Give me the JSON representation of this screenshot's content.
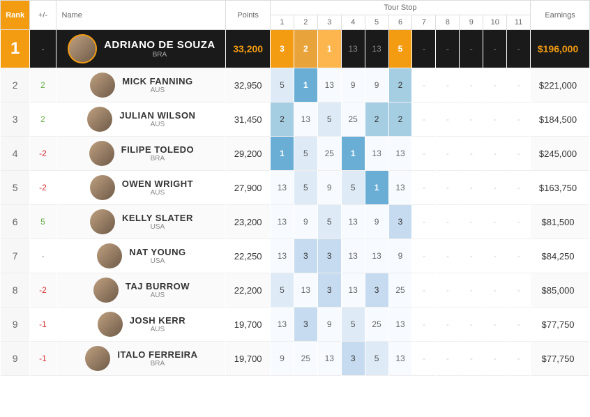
{
  "headers": {
    "rank": "Rank",
    "change": "+/-",
    "name": "Name",
    "points": "Points",
    "tour_stop": "Tour Stop",
    "stops": [
      "1",
      "2",
      "3",
      "4",
      "5",
      "6",
      "7",
      "8",
      "9",
      "10",
      "11"
    ],
    "earnings": "Earnings"
  },
  "style": {
    "accent": "#f39c12",
    "accent2": "#e8a33b",
    "accent3": "#fdb64e",
    "top_bg": "#1a1a1a",
    "blue1": "#6aaed6",
    "blue2": "#a6cee3",
    "blue3": "#c6dbef",
    "blue4": "#deebf7",
    "blue5": "#f7fbff",
    "up": "#6ab04c",
    "down": "#d63031"
  },
  "rows": [
    {
      "rank": "1",
      "change": "-",
      "change_dir": "none",
      "name": "ADRIANO DE SOUZA",
      "country": "BRA",
      "points": "33,200",
      "stops": [
        "3",
        "2",
        "1",
        "13",
        "13",
        "5",
        "-",
        "-",
        "-",
        "-",
        "-"
      ],
      "shades": [
        "s1",
        "s2",
        "s3",
        "s5",
        "s5",
        "s1",
        "empty",
        "empty",
        "empty",
        "empty",
        "empty"
      ],
      "earnings": "$196,000",
      "top": true
    },
    {
      "rank": "2",
      "change": "2",
      "change_dir": "up",
      "name": "MICK FANNING",
      "country": "AUS",
      "points": "32,950",
      "stops": [
        "5",
        "1",
        "13",
        "9",
        "9",
        "2",
        "-",
        "-",
        "-",
        "-",
        "-"
      ],
      "shades": [
        "s4",
        "s1",
        "s5",
        "s5",
        "s5",
        "s2",
        "empty",
        "empty",
        "empty",
        "empty",
        "empty"
      ],
      "earnings": "$221,000"
    },
    {
      "rank": "3",
      "change": "2",
      "change_dir": "up",
      "name": "JULIAN WILSON",
      "country": "AUS",
      "points": "31,450",
      "stops": [
        "2",
        "13",
        "5",
        "25",
        "2",
        "2",
        "-",
        "-",
        "-",
        "-",
        "-"
      ],
      "shades": [
        "s2",
        "s5",
        "s4",
        "s5",
        "s2",
        "s2",
        "empty",
        "empty",
        "empty",
        "empty",
        "empty"
      ],
      "earnings": "$184,500"
    },
    {
      "rank": "4",
      "change": "-2",
      "change_dir": "down",
      "name": "FILIPE TOLEDO",
      "country": "BRA",
      "points": "29,200",
      "stops": [
        "1",
        "5",
        "25",
        "1",
        "13",
        "13",
        "-",
        "-",
        "-",
        "-",
        "-"
      ],
      "shades": [
        "s1",
        "s4",
        "s5",
        "s1",
        "s5",
        "s5",
        "empty",
        "empty",
        "empty",
        "empty",
        "empty"
      ],
      "earnings": "$245,000"
    },
    {
      "rank": "5",
      "change": "-2",
      "change_dir": "down",
      "name": "OWEN WRIGHT",
      "country": "AUS",
      "points": "27,900",
      "stops": [
        "13",
        "5",
        "9",
        "5",
        "1",
        "13",
        "-",
        "-",
        "-",
        "-",
        "-"
      ],
      "shades": [
        "s5",
        "s4",
        "s5",
        "s4",
        "s1",
        "s5",
        "empty",
        "empty",
        "empty",
        "empty",
        "empty"
      ],
      "earnings": "$163,750"
    },
    {
      "rank": "6",
      "change": "5",
      "change_dir": "up",
      "name": "KELLY SLATER",
      "country": "USA",
      "points": "23,200",
      "stops": [
        "13",
        "9",
        "5",
        "13",
        "9",
        "3",
        "-",
        "-",
        "-",
        "-",
        "-"
      ],
      "shades": [
        "s5",
        "s5",
        "s4",
        "s5",
        "s5",
        "s3",
        "empty",
        "empty",
        "empty",
        "empty",
        "empty"
      ],
      "earnings": "$81,500"
    },
    {
      "rank": "7",
      "change": "-",
      "change_dir": "none",
      "name": "NAT YOUNG",
      "country": "USA",
      "points": "22,250",
      "stops": [
        "13",
        "3",
        "3",
        "13",
        "13",
        "9",
        "-",
        "-",
        "-",
        "-",
        "-"
      ],
      "shades": [
        "s5",
        "s3",
        "s3",
        "s5",
        "s5",
        "s5",
        "empty",
        "empty",
        "empty",
        "empty",
        "empty"
      ],
      "earnings": "$84,250"
    },
    {
      "rank": "8",
      "change": "-2",
      "change_dir": "down",
      "name": "TAJ BURROW",
      "country": "AUS",
      "points": "22,200",
      "stops": [
        "5",
        "13",
        "3",
        "13",
        "3",
        "25",
        "-",
        "-",
        "-",
        "-",
        "-"
      ],
      "shades": [
        "s4",
        "s5",
        "s3",
        "s5",
        "s3",
        "s5",
        "empty",
        "empty",
        "empty",
        "empty",
        "empty"
      ],
      "earnings": "$85,000"
    },
    {
      "rank": "9",
      "change": "-1",
      "change_dir": "down",
      "name": "JOSH KERR",
      "country": "AUS",
      "points": "19,700",
      "stops": [
        "13",
        "3",
        "9",
        "5",
        "25",
        "13",
        "-",
        "-",
        "-",
        "-",
        "-"
      ],
      "shades": [
        "s5",
        "s3",
        "s5",
        "s4",
        "s5",
        "s5",
        "empty",
        "empty",
        "empty",
        "empty",
        "empty"
      ],
      "earnings": "$77,750"
    },
    {
      "rank": "9",
      "change": "-1",
      "change_dir": "down",
      "name": "ITALO FERREIRA",
      "country": "BRA",
      "points": "19,700",
      "stops": [
        "9",
        "25",
        "13",
        "3",
        "5",
        "13",
        "-",
        "-",
        "-",
        "-",
        "-"
      ],
      "shades": [
        "s5",
        "s5",
        "s5",
        "s3",
        "s4",
        "s5",
        "empty",
        "empty",
        "empty",
        "empty",
        "empty"
      ],
      "earnings": "$77,750"
    }
  ]
}
